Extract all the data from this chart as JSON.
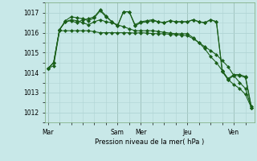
{
  "background_color": "#c8e8e8",
  "grid_color": "#b0d4d4",
  "line_color": "#1a5f1a",
  "title": "Pression niveau de la mer( hPa )",
  "ylim": [
    1011.5,
    1017.5
  ],
  "yticks": [
    1012,
    1013,
    1014,
    1015,
    1016,
    1017
  ],
  "day_labels": [
    "Mar",
    "Sam",
    "Mer",
    "Jeu",
    "Ven"
  ],
  "day_x": [
    0,
    12,
    16,
    24,
    32
  ],
  "n_points": 36,
  "series": [
    [
      1014.2,
      1014.35,
      1016.1,
      1016.1,
      1016.1,
      1016.1,
      1016.1,
      1016.1,
      1016.05,
      1016.0,
      1016.0,
      1016.0,
      1016.0,
      1016.0,
      1016.0,
      1015.98,
      1016.0,
      1015.98,
      1015.96,
      1015.95,
      1015.95,
      1015.92,
      1015.9,
      1015.88,
      1015.85,
      1015.7,
      1015.5,
      1015.3,
      1015.1,
      1014.9,
      1014.6,
      1014.3,
      1013.85,
      1013.5,
      1013.2,
      1012.25
    ],
    [
      1014.2,
      1014.5,
      1016.15,
      1016.55,
      1016.65,
      1016.6,
      1016.5,
      1016.4,
      1016.55,
      1016.65,
      1016.55,
      1016.5,
      1016.4,
      1016.3,
      1016.2,
      1016.1,
      1016.1,
      1016.1,
      1016.1,
      1016.06,
      1016.02,
      1015.98,
      1015.95,
      1015.95,
      1015.95,
      1015.75,
      1015.5,
      1015.2,
      1014.8,
      1014.5,
      1014.1,
      1013.65,
      1013.4,
      1013.2,
      1012.9,
      1012.25
    ],
    [
      1014.2,
      1014.5,
      1016.15,
      1016.6,
      1016.8,
      1016.75,
      1016.7,
      1016.6,
      1016.75,
      1017.1,
      1016.8,
      1016.55,
      1016.35,
      1017.05,
      1017.05,
      1016.4,
      1016.55,
      1016.6,
      1016.65,
      1016.55,
      1016.5,
      1016.6,
      1016.55,
      1016.55,
      1016.55,
      1016.65,
      1016.55,
      1016.5,
      1016.65,
      1016.55,
      1014.1,
      1013.7,
      1013.9,
      1013.9,
      1013.8,
      1012.25
    ],
    [
      1014.2,
      1014.5,
      1016.15,
      1016.55,
      1016.6,
      1016.5,
      1016.65,
      1016.7,
      1016.8,
      1017.15,
      1016.85,
      1016.55,
      1016.35,
      1017.05,
      1017.05,
      1016.35,
      1016.5,
      1016.55,
      1016.6,
      1016.55,
      1016.5,
      1016.6,
      1016.55,
      1016.55,
      1016.55,
      1016.65,
      1016.55,
      1016.5,
      1016.65,
      1016.55,
      1014.05,
      1013.65,
      1013.85,
      1013.85,
      1013.75,
      1012.3
    ]
  ]
}
